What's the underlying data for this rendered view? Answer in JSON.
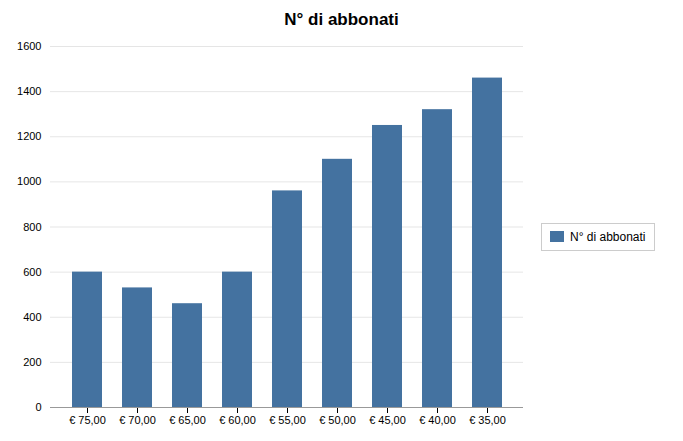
{
  "chart_data": {
    "type": "bar",
    "title": "N° di abbonati",
    "categories": [
      "€ 75,00",
      "€ 70,00",
      "€ 65,00",
      "€ 60,00",
      "€ 55,00",
      "€ 50,00",
      "€ 45,00",
      "€ 40,00",
      "€ 35,00"
    ],
    "series": [
      {
        "name": "N° di abbonati",
        "color": "#4472A0",
        "values": [
          600,
          530,
          460,
          600,
          960,
          1100,
          1250,
          1320,
          1460
        ]
      }
    ],
    "ylim": [
      0,
      1600
    ],
    "yticks": [
      0,
      200,
      400,
      600,
      800,
      1000,
      1200,
      1400,
      1600
    ],
    "grid": true,
    "legend": "right"
  }
}
